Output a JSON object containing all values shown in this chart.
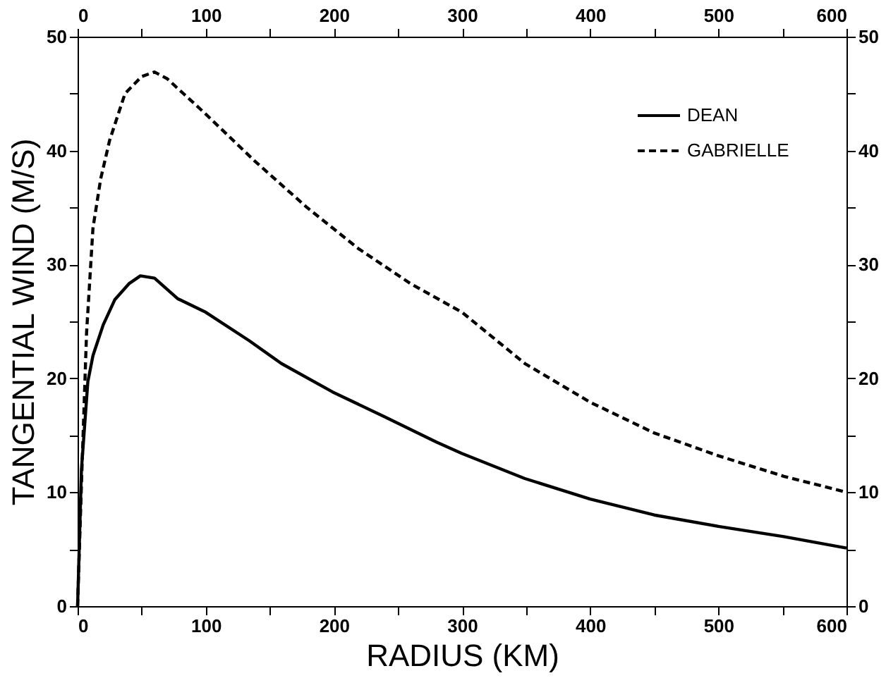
{
  "chart_data": {
    "type": "line",
    "xlabel": "RADIUS (KM)",
    "ylabel": "TANGENTIAL WIND (M/S)",
    "xlim": [
      0,
      600
    ],
    "xticks": [
      0,
      {
        "value": 50,
        "label": null
      },
      100,
      {
        "value": 150,
        "label": null
      },
      200,
      {
        "value": 250,
        "label": null
      },
      300,
      {
        "value": 350,
        "label": null
      },
      400,
      {
        "value": 450,
        "label": null
      },
      500,
      {
        "value": 550,
        "label": null
      },
      600
    ],
    "x2lim": [
      0,
      600
    ],
    "x2ticks": [
      0,
      {
        "value": 50,
        "label": null
      },
      100,
      {
        "value": 150,
        "label": null
      },
      200,
      {
        "value": 250,
        "label": null
      },
      300,
      {
        "value": 350,
        "label": null
      },
      400,
      {
        "value": 450,
        "label": null
      },
      500,
      {
        "value": 550,
        "label": null
      },
      600
    ],
    "ylim": [
      0,
      50
    ],
    "yticks": [
      0,
      {
        "value": 5,
        "label": null
      },
      10,
      {
        "value": 15,
        "label": null
      },
      20,
      {
        "value": 25,
        "label": null
      },
      30,
      {
        "value": 35,
        "label": null
      },
      40,
      {
        "value": 45,
        "label": null
      },
      50
    ],
    "y2lim": [
      0,
      50
    ],
    "y2ticks": [
      0,
      {
        "value": 5,
        "label": null
      },
      10,
      {
        "value": 15,
        "label": null
      },
      20,
      {
        "value": 25,
        "label": null
      },
      30,
      {
        "value": 35,
        "label": null
      },
      40,
      {
        "value": 45,
        "label": null
      },
      50
    ],
    "grid": false,
    "legend": "top right",
    "marker": "none",
    "series": [
      {
        "name": "DEAN",
        "color": "#000000",
        "line_style": "solid",
        "x": [
          0,
          3,
          8,
          12,
          20,
          29,
          40,
          49,
          60,
          78,
          100,
          134,
          159,
          199,
          240,
          280,
          300,
          349,
          400,
          450,
          500,
          551,
          600
        ],
        "values": [
          0,
          12,
          19.7,
          22,
          24.7,
          26.9,
          28.3,
          29,
          28.8,
          27,
          25.8,
          23.3,
          21.3,
          18.8,
          16.6,
          14.4,
          13.4,
          11.2,
          9.4,
          8,
          7,
          6.1,
          5.1
        ]
      },
      {
        "name": "GABRIELLE",
        "color": "#000000",
        "line_style": "dashed",
        "x": [
          0,
          3,
          7,
          12,
          18,
          25,
          37,
          50,
          60,
          70,
          100,
          138,
          179,
          219,
          260,
          300,
          349,
          400,
          450,
          500,
          551,
          600
        ],
        "values": [
          0,
          10.7,
          24,
          33.2,
          37.5,
          40.9,
          45,
          46.5,
          46.9,
          46.3,
          43.2,
          39.1,
          35,
          31.4,
          28.3,
          25.8,
          21.3,
          17.9,
          15.2,
          13.2,
          11.4,
          10
        ]
      }
    ]
  }
}
